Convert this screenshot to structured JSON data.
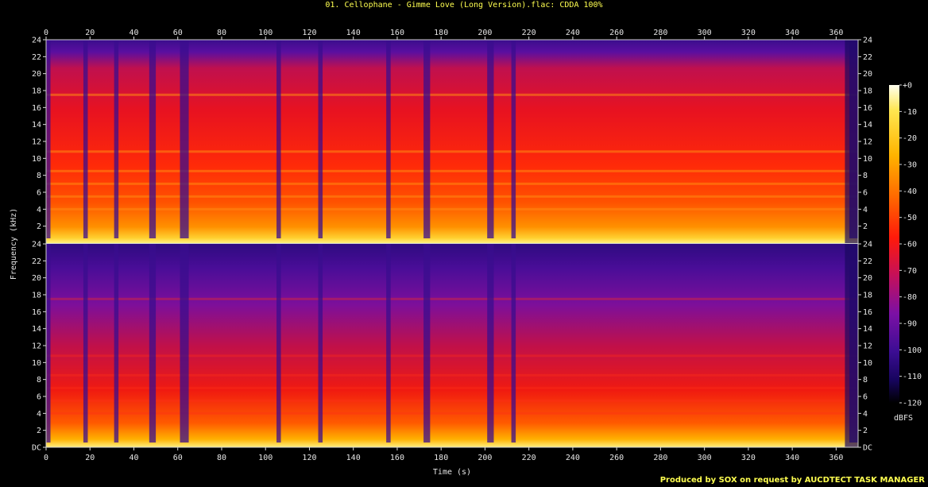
{
  "title": "01. Cellophane - Gimme Love (Long Version).flac: CDDA 100%",
  "credit": "Produced by SOX on request by AUCDTECT TASK MANAGER",
  "chart_data": {
    "type": "heatmap",
    "title": "01. Cellophane - Gimme Love (Long Version).flac: CDDA 100%",
    "xlabel": "Time (s)",
    "ylabel": "Frequency (kHz)",
    "xlim": [
      0,
      370
    ],
    "x_ticks": [
      0,
      20,
      40,
      60,
      80,
      100,
      120,
      140,
      160,
      180,
      200,
      220,
      240,
      260,
      280,
      300,
      320,
      340,
      360
    ],
    "ylim": [
      0,
      24
    ],
    "y_tick_labels": [
      "DC",
      "2",
      "4",
      "6",
      "8",
      "10",
      "12",
      "14",
      "16",
      "18",
      "20",
      "22",
      "24"
    ],
    "colorbar": {
      "label": "dBFS",
      "ticks": [
        "+0",
        "-10",
        "-20",
        "-30",
        "-40",
        "-50",
        "-60",
        "-70",
        "-80",
        "-90",
        "-100",
        "-110",
        "-120"
      ],
      "range": [
        -120,
        0
      ]
    },
    "channels": 2,
    "quiet_segments_s": [
      [
        0,
        2
      ],
      [
        17,
        19
      ],
      [
        31,
        33
      ],
      [
        47,
        50
      ],
      [
        61,
        65
      ],
      [
        105,
        107
      ],
      [
        124,
        126
      ],
      [
        155,
        157
      ],
      [
        172,
        175
      ],
      [
        201,
        204
      ],
      [
        212,
        214
      ],
      [
        366,
        370
      ]
    ],
    "spectral_lines_khz": [
      17.5,
      10.8,
      8.5,
      7,
      5.5,
      4
    ],
    "colors": {
      "scale": [
        "#000000",
        "#16045c",
        "#3b0d93",
        "#7b10a5",
        "#c4105a",
        "#ff1a0a",
        "#ff6a00",
        "#ffb400",
        "#ffe650",
        "#fffff0"
      ]
    }
  }
}
